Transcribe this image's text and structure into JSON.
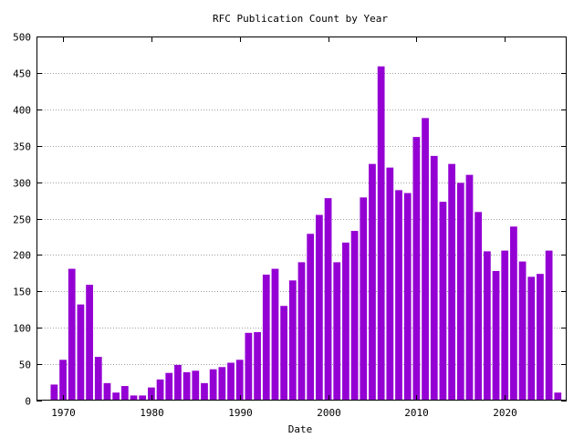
{
  "chart_data": {
    "type": "bar",
    "title": "RFC Publication Count by Year",
    "xlabel": "Date",
    "ylabel": "",
    "ylim": [
      0,
      500
    ],
    "xlim": [
      1967,
      2027
    ],
    "y_ticks": [
      0,
      50,
      100,
      150,
      200,
      250,
      300,
      350,
      400,
      450,
      500
    ],
    "x_ticks": [
      1970,
      1980,
      1990,
      2000,
      2010,
      2020
    ],
    "grid": true,
    "bar_color": "#9400d3",
    "years": [
      1968,
      1969,
      1970,
      1971,
      1972,
      1973,
      1974,
      1975,
      1976,
      1977,
      1978,
      1979,
      1980,
      1981,
      1982,
      1983,
      1984,
      1985,
      1986,
      1987,
      1988,
      1989,
      1990,
      1991,
      1992,
      1993,
      1994,
      1995,
      1996,
      1997,
      1998,
      1999,
      2000,
      2001,
      2002,
      2003,
      2004,
      2005,
      2006,
      2007,
      2008,
      2009,
      2010,
      2011,
      2012,
      2013,
      2014,
      2015,
      2016,
      2017,
      2018,
      2019,
      2020,
      2021,
      2022,
      2023,
      2024,
      2025,
      2026
    ],
    "values": [
      1,
      22,
      56,
      181,
      132,
      159,
      60,
      24,
      11,
      20,
      7,
      7,
      18,
      29,
      38,
      49,
      39,
      41,
      24,
      43,
      46,
      52,
      56,
      93,
      94,
      173,
      181,
      130,
      165,
      190,
      229,
      255,
      278,
      190,
      217,
      233,
      279,
      325,
      459,
      320,
      289,
      285,
      362,
      388,
      336,
      273,
      325,
      299,
      310,
      259,
      205,
      178,
      206,
      239,
      191,
      170,
      174,
      206,
      11
    ]
  }
}
